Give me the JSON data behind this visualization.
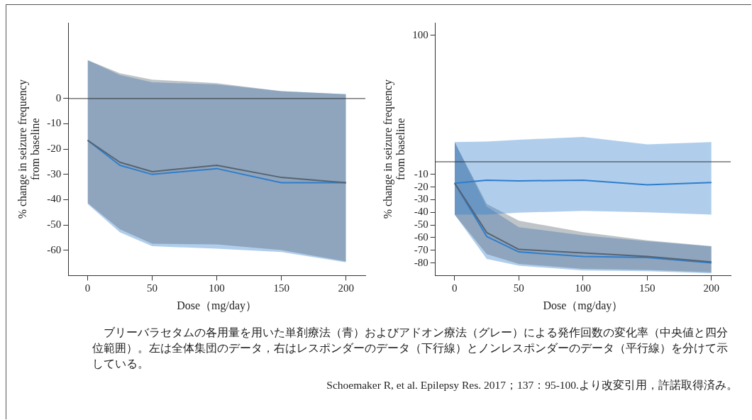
{
  "chart_data": [
    {
      "type": "line",
      "xlabel": "Dose（mg/day）",
      "ylabel": "% change in seizure frequency\nfrom baseline",
      "x": [
        0,
        25,
        50,
        100,
        150,
        200
      ],
      "xlim": [
        -15,
        215
      ],
      "xticks": [
        0,
        50,
        100,
        150,
        200
      ],
      "ylim": [
        -70,
        30
      ],
      "yticks": [
        0,
        -10,
        -20,
        -30,
        -40,
        -50,
        -60
      ],
      "marker": "none",
      "line_style": "solid",
      "series": [
        {
          "color": "#586370",
          "values": [
            -16.5,
            -25.2,
            -28.9,
            -26.4,
            -31.2,
            -33.3
          ],
          "lower": [
            -41.3,
            -51.7,
            -57.4,
            -57.7,
            -59.9,
            -64.4
          ],
          "upper": [
            15.2,
            10,
            7.5,
            6.1,
            2.9,
            1.7
          ]
        },
        {
          "color": "#2f7dcc",
          "values": [
            -16.5,
            -26.4,
            -30,
            -27.7,
            -33.3,
            -33.3
          ],
          "lower": [
            -41.7,
            -52.9,
            -58.4,
            -59.4,
            -60.7,
            -64.8
          ],
          "upper": [
            15.2,
            9.3,
            6.4,
            5.6,
            2.9,
            1.7
          ]
        }
      ],
      "ref_lines": [
        {
          "axis": "y",
          "value": 0,
          "color": "#333333"
        }
      ],
      "annotations": [
        "ブリーバラセタムの各用量を用いた単剤療法（青）およびアドオン療法（グレー）による発作回数の変化率（中央値と四分位範囲）。左は全体集団のデータ，右はレスポンダーのデータ（下行線）とノンレスポンダーのデータ（平行線）を分けて示している。",
        "Schoemaker R, et al. Epilepsy Res. 2017；137：95-100.より改変引用，許諾取得済み。"
      ]
    },
    {
      "type": "line",
      "xlabel": "Dose（mg/day）",
      "ylabel": "% change in seizure frequency\nfrom baseline",
      "x": [
        0,
        25,
        50,
        100,
        150,
        200
      ],
      "xlim": [
        -15,
        215
      ],
      "xticks": [
        0,
        50,
        100,
        150,
        200
      ],
      "ylim": [
        -90,
        110
      ],
      "yticks": [
        100,
        -10,
        -20,
        -30,
        -40,
        -50,
        -60,
        -70,
        -80
      ],
      "marker": "none",
      "line_style": "solid",
      "series": [
        {
          "color": "#2f7dcc",
          "values": [
            -16.9,
            -14.6,
            -15.1,
            -14.6,
            -18.2,
            -16.4
          ],
          "lower": [
            -41.8,
            -41.8,
            -40.3,
            -38.8,
            -40,
            -41.8
          ],
          "upper": [
            15.6,
            16,
            17.4,
            19.6,
            13.8,
            15.6
          ]
        },
        {
          "color": "#586370",
          "values": [
            -16.9,
            -56,
            -69.3,
            -72.1,
            -74.9,
            -79.2
          ],
          "lower": [
            -41.8,
            -73.1,
            -80.8,
            -84.7,
            -85.5,
            -87.4
          ],
          "upper": [
            15.6,
            -33.4,
            -46.6,
            -55.7,
            -62.2,
            -66.7
          ]
        },
        {
          "color": "#2f7dcc",
          "values": [
            -16.9,
            -59.1,
            -71.3,
            -74.9,
            -75.7,
            -80
          ],
          "lower": [
            -41.8,
            -76.8,
            -82.2,
            -86,
            -86.6,
            -88.2
          ],
          "upper": [
            15.6,
            -35.5,
            -51.7,
            -58.2,
            -62.8,
            -66.9
          ]
        }
      ],
      "ref_lines": [
        {
          "axis": "y",
          "value": 0,
          "color": "#333333"
        }
      ]
    }
  ]
}
